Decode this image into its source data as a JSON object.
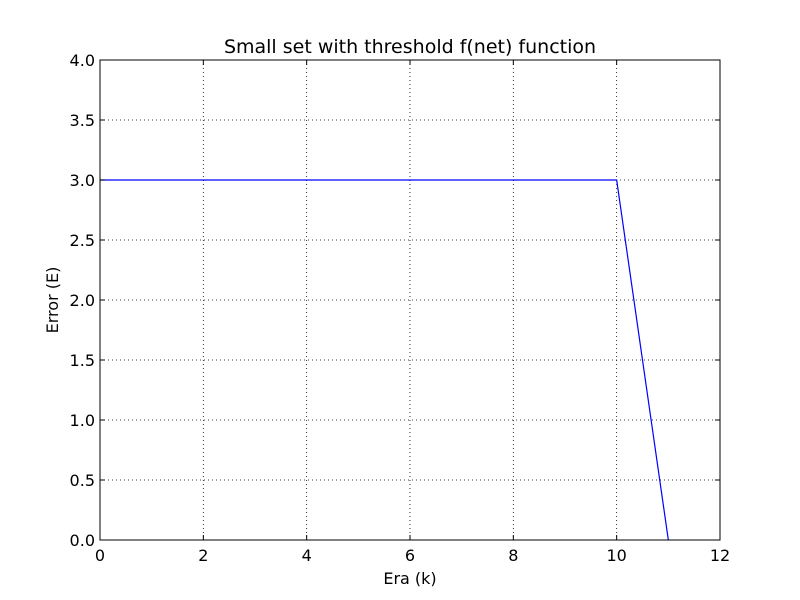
{
  "chart_data": {
    "type": "line",
    "title": "Small set with threshold f(net) function",
    "xlabel": "Era (k)",
    "ylabel": "Error (E)",
    "xlim": [
      0,
      12
    ],
    "ylim": [
      0,
      4
    ],
    "xticks": [
      0,
      2,
      4,
      6,
      8,
      10,
      12
    ],
    "yticks": [
      0.0,
      0.5,
      1.0,
      1.5,
      2.0,
      2.5,
      3.0,
      3.5,
      4.0
    ],
    "xtick_labels": [
      "0",
      "2",
      "4",
      "6",
      "8",
      "10",
      "12"
    ],
    "ytick_labels": [
      "0.0",
      "0.5",
      "1.0",
      "1.5",
      "2.0",
      "2.5",
      "3.0",
      "3.5",
      "4.0"
    ],
    "grid": true,
    "grid_style": "dotted",
    "series": [
      {
        "color": "#0000ff",
        "x": [
          0,
          1,
          2,
          3,
          4,
          5,
          6,
          7,
          8,
          9,
          10,
          11
        ],
        "y": [
          3,
          3,
          3,
          3,
          3,
          3,
          3,
          3,
          3,
          3,
          3,
          0
        ]
      }
    ]
  }
}
